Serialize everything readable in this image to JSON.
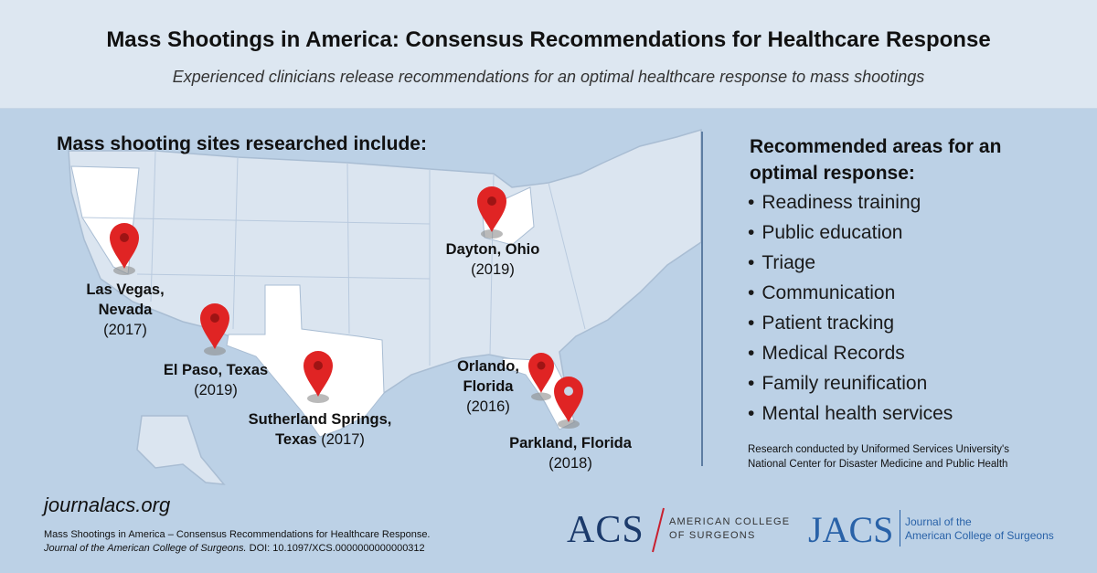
{
  "header": {
    "title": "Mass Shootings in America: Consensus Recommendations for Healthcare Response",
    "subtitle": "Experienced clinicians release recommendations for an optimal healthcare response to mass shootings"
  },
  "sites": {
    "heading": "Mass shooting sites researched include:",
    "las_vegas": {
      "name_line1": "Las Vegas,",
      "name_line2": "Nevada",
      "year": "(2017)"
    },
    "el_paso": {
      "name": "El Paso, Texas",
      "year": "(2019)"
    },
    "sutherland": {
      "name_line1": "Sutherland Springs,",
      "name_line2": "Texas",
      "year": "(2017)"
    },
    "dayton": {
      "name": "Dayton, Ohio",
      "year": "(2019)"
    },
    "orlando": {
      "name_line1": "Orlando,",
      "name_line2": "Florida",
      "year": "(2016)"
    },
    "parkland": {
      "name": "Parkland, Florida",
      "year": "(2018)"
    }
  },
  "recommendations": {
    "heading_line1": "Recommended areas for an",
    "heading_line2": "optimal response:",
    "items": [
      "Readiness training",
      "Public education",
      "Triage",
      "Communication",
      "Patient tracking",
      "Medical Records",
      "Family reunification",
      "Mental health services"
    ],
    "credit_line1": "Research conducted by Uniformed Services University's",
    "credit_line2": "National Center for Disaster Medicine and Public Health"
  },
  "footer": {
    "url": "journalacs.org",
    "citation_line1": "Mass Shootings in America – Consensus Recommendations for Healthcare Response.",
    "citation_journal": "Journal of the American College of Surgeons.",
    "citation_doi": " DOI: 10.1097/XCS.0000000000000312"
  },
  "logos": {
    "acs_letters": "ACS",
    "acs_line1": "AMERICAN COLLEGE",
    "acs_line2": "OF SURGEONS",
    "jacs_letters": "JACS",
    "jacs_line1": "Journal of the",
    "jacs_line2": "American College of Surgeons"
  },
  "colors": {
    "background": "#bcd1e6",
    "header_band": "#dde7f1",
    "pin": "#e02424",
    "highlight_state": "#ffffff",
    "divider": "#5d7da2"
  },
  "icons": [
    "map-pin-icon"
  ]
}
